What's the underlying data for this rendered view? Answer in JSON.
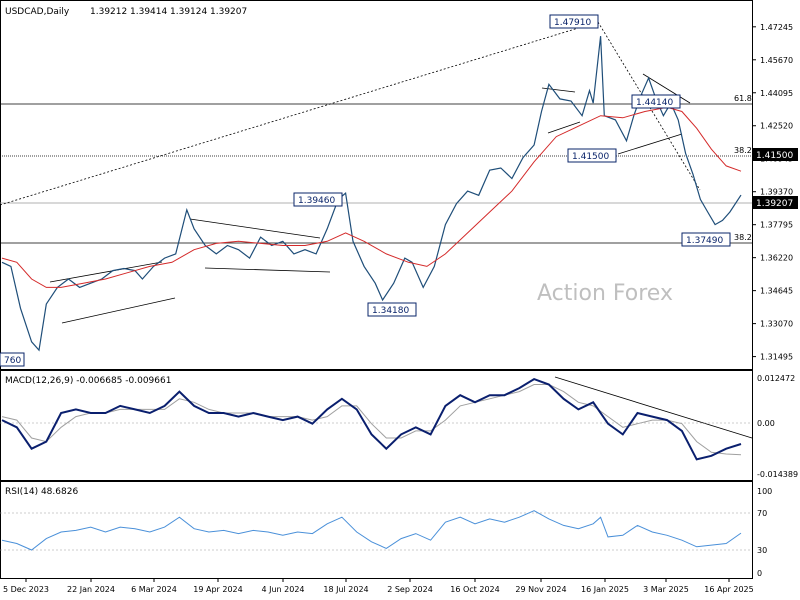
{
  "chart_data": {
    "type": "candlestick",
    "symbol_label": "USDCAD,Daily",
    "ohlc": [
      "1.39212",
      "1.39414",
      "1.39124",
      "1.39207"
    ],
    "watermark": "Action Forex",
    "x_ticks": [
      "5 Dec 2023",
      "22 Jan 2024",
      "6 Mar 2024",
      "19 Apr 2024",
      "4 Jun 2024",
      "18 Jul 2024",
      "2 Sep 2024",
      "16 Oct 2024",
      "29 Nov 2024",
      "16 Jan 2025",
      "3 Mar 2025",
      "16 Apr 2025"
    ],
    "price_panel": {
      "y_ticks": [
        "1.47245",
        "1.45670",
        "1.44095",
        "1.42520",
        "1.40945",
        "1.39370",
        "1.37795",
        "1.36220",
        "1.34645",
        "1.33070",
        "1.31495"
      ],
      "ylim": [
        1.3095,
        1.4843
      ],
      "current_price": "1.39207",
      "level_1_41500": "1.41500",
      "fib_levels": [
        {
          "label": "61.8",
          "value": 1.4386
        },
        {
          "label": "38.2",
          "value": 1.415
        },
        {
          "label": "38.2",
          "value": 1.3744
        }
      ],
      "callouts": [
        "1.47910",
        "1.44140",
        "1.41500",
        "1.39460",
        "1.37490",
        "1.34180",
        "760"
      ],
      "price_path": [
        [
          0,
          1.36
        ],
        [
          0.012,
          1.358
        ],
        [
          0.025,
          1.338
        ],
        [
          0.04,
          1.322
        ],
        [
          0.05,
          1.318
        ],
        [
          0.06,
          1.34
        ],
        [
          0.075,
          1.348
        ],
        [
          0.09,
          1.352
        ],
        [
          0.105,
          1.348
        ],
        [
          0.12,
          1.35
        ],
        [
          0.135,
          1.352
        ],
        [
          0.15,
          1.356
        ],
        [
          0.165,
          1.357
        ],
        [
          0.18,
          1.356
        ],
        [
          0.19,
          1.352
        ],
        [
          0.205,
          1.358
        ],
        [
          0.22,
          1.362
        ],
        [
          0.235,
          1.364
        ],
        [
          0.25,
          1.385
        ],
        [
          0.26,
          1.376
        ],
        [
          0.275,
          1.368
        ],
        [
          0.29,
          1.364
        ],
        [
          0.305,
          1.368
        ],
        [
          0.32,
          1.366
        ],
        [
          0.335,
          1.362
        ],
        [
          0.35,
          1.372
        ],
        [
          0.365,
          1.368
        ],
        [
          0.38,
          1.37
        ],
        [
          0.395,
          1.364
        ],
        [
          0.41,
          1.366
        ],
        [
          0.425,
          1.364
        ],
        [
          0.44,
          1.376
        ],
        [
          0.455,
          1.39
        ],
        [
          0.465,
          1.393
        ],
        [
          0.475,
          1.37
        ],
        [
          0.49,
          1.358
        ],
        [
          0.505,
          1.35
        ],
        [
          0.515,
          1.342
        ],
        [
          0.53,
          1.35
        ],
        [
          0.545,
          1.362
        ],
        [
          0.555,
          1.36
        ],
        [
          0.57,
          1.348
        ],
        [
          0.585,
          1.358
        ],
        [
          0.6,
          1.378
        ],
        [
          0.615,
          1.388
        ],
        [
          0.63,
          1.394
        ],
        [
          0.645,
          1.392
        ],
        [
          0.66,
          1.404
        ],
        [
          0.675,
          1.405
        ],
        [
          0.69,
          1.4
        ],
        [
          0.705,
          1.41
        ],
        [
          0.72,
          1.416
        ],
        [
          0.73,
          1.432
        ],
        [
          0.74,
          1.445
        ],
        [
          0.755,
          1.438
        ],
        [
          0.77,
          1.437
        ],
        [
          0.785,
          1.43
        ],
        [
          0.795,
          1.442
        ],
        [
          0.8,
          1.436
        ],
        [
          0.81,
          1.468
        ],
        [
          0.815,
          1.43
        ],
        [
          0.83,
          1.428
        ],
        [
          0.845,
          1.418
        ],
        [
          0.855,
          1.43
        ],
        [
          0.865,
          1.44
        ],
        [
          0.875,
          1.448
        ],
        [
          0.885,
          1.438
        ],
        [
          0.895,
          1.43
        ],
        [
          0.905,
          1.436
        ],
        [
          0.915,
          1.428
        ],
        [
          0.925,
          1.412
        ],
        [
          0.935,
          1.402
        ],
        [
          0.945,
          1.39
        ],
        [
          0.955,
          1.384
        ],
        [
          0.965,
          1.378
        ],
        [
          0.975,
          1.38
        ],
        [
          0.985,
          1.384
        ],
        [
          1.0,
          1.3921
        ]
      ],
      "ma_path": [
        [
          0,
          1.362
        ],
        [
          0.02,
          1.36
        ],
        [
          0.04,
          1.352
        ],
        [
          0.06,
          1.348
        ],
        [
          0.08,
          1.348
        ],
        [
          0.11,
          1.35
        ],
        [
          0.14,
          1.352
        ],
        [
          0.17,
          1.355
        ],
        [
          0.2,
          1.358
        ],
        [
          0.23,
          1.36
        ],
        [
          0.26,
          1.366
        ],
        [
          0.29,
          1.369
        ],
        [
          0.32,
          1.37
        ],
        [
          0.35,
          1.369
        ],
        [
          0.38,
          1.368
        ],
        [
          0.41,
          1.368
        ],
        [
          0.44,
          1.37
        ],
        [
          0.465,
          1.374
        ],
        [
          0.49,
          1.37
        ],
        [
          0.52,
          1.364
        ],
        [
          0.55,
          1.36
        ],
        [
          0.575,
          1.358
        ],
        [
          0.6,
          1.364
        ],
        [
          0.63,
          1.374
        ],
        [
          0.66,
          1.384
        ],
        [
          0.69,
          1.394
        ],
        [
          0.72,
          1.408
        ],
        [
          0.75,
          1.42
        ],
        [
          0.78,
          1.425
        ],
        [
          0.81,
          1.43
        ],
        [
          0.84,
          1.429
        ],
        [
          0.87,
          1.432
        ],
        [
          0.9,
          1.434
        ],
        [
          0.92,
          1.432
        ],
        [
          0.94,
          1.424
        ],
        [
          0.96,
          1.414
        ],
        [
          0.98,
          1.406
        ],
        [
          1.0,
          1.4035
        ]
      ]
    },
    "macd_panel": {
      "label": "MACD(12,26,9) -0.006685 -0.009661",
      "y_ticks": [
        "0.012472",
        "0.00",
        "-0.014389"
      ],
      "ylim": [
        -0.0165,
        0.0135
      ],
      "macd_line": [
        [
          0,
          0.0
        ],
        [
          0.02,
          -0.002
        ],
        [
          0.04,
          -0.008
        ],
        [
          0.06,
          -0.006
        ],
        [
          0.08,
          0.002
        ],
        [
          0.1,
          0.003
        ],
        [
          0.12,
          0.002
        ],
        [
          0.14,
          0.002
        ],
        [
          0.16,
          0.004
        ],
        [
          0.18,
          0.003
        ],
        [
          0.2,
          0.002
        ],
        [
          0.22,
          0.004
        ],
        [
          0.24,
          0.008
        ],
        [
          0.26,
          0.004
        ],
        [
          0.28,
          0.002
        ],
        [
          0.3,
          0.002
        ],
        [
          0.32,
          0.001
        ],
        [
          0.34,
          0.002
        ],
        [
          0.36,
          0.001
        ],
        [
          0.38,
          0.0
        ],
        [
          0.4,
          0.001
        ],
        [
          0.42,
          -0.001
        ],
        [
          0.44,
          0.003
        ],
        [
          0.46,
          0.006
        ],
        [
          0.48,
          0.003
        ],
        [
          0.5,
          -0.004
        ],
        [
          0.52,
          -0.008
        ],
        [
          0.54,
          -0.004
        ],
        [
          0.56,
          -0.002
        ],
        [
          0.58,
          -0.004
        ],
        [
          0.6,
          0.004
        ],
        [
          0.62,
          0.007
        ],
        [
          0.64,
          0.005
        ],
        [
          0.66,
          0.007
        ],
        [
          0.68,
          0.007
        ],
        [
          0.7,
          0.009
        ],
        [
          0.72,
          0.0115
        ],
        [
          0.74,
          0.01
        ],
        [
          0.76,
          0.006
        ],
        [
          0.78,
          0.003
        ],
        [
          0.8,
          0.005
        ],
        [
          0.82,
          -0.001
        ],
        [
          0.84,
          -0.004
        ],
        [
          0.86,
          0.002
        ],
        [
          0.88,
          0.001
        ],
        [
          0.9,
          0.0
        ],
        [
          0.92,
          -0.003
        ],
        [
          0.94,
          -0.011
        ],
        [
          0.96,
          -0.01
        ],
        [
          0.98,
          -0.008
        ],
        [
          1.0,
          -0.0067
        ]
      ],
      "signal_line": [
        [
          0,
          0.001
        ],
        [
          0.02,
          0.0
        ],
        [
          0.04,
          -0.005
        ],
        [
          0.06,
          -0.006
        ],
        [
          0.08,
          -0.002
        ],
        [
          0.1,
          0.001
        ],
        [
          0.12,
          0.002
        ],
        [
          0.14,
          0.002
        ],
        [
          0.16,
          0.003
        ],
        [
          0.18,
          0.003
        ],
        [
          0.2,
          0.003
        ],
        [
          0.22,
          0.003
        ],
        [
          0.24,
          0.006
        ],
        [
          0.26,
          0.005
        ],
        [
          0.28,
          0.003
        ],
        [
          0.3,
          0.002
        ],
        [
          0.32,
          0.002
        ],
        [
          0.34,
          0.002
        ],
        [
          0.36,
          0.001
        ],
        [
          0.38,
          0.001
        ],
        [
          0.4,
          0.001
        ],
        [
          0.42,
          0.0
        ],
        [
          0.44,
          0.001
        ],
        [
          0.46,
          0.004
        ],
        [
          0.48,
          0.004
        ],
        [
          0.5,
          -0.001
        ],
        [
          0.52,
          -0.005
        ],
        [
          0.54,
          -0.005
        ],
        [
          0.56,
          -0.003
        ],
        [
          0.58,
          -0.003
        ],
        [
          0.6,
          0.0
        ],
        [
          0.62,
          0.004
        ],
        [
          0.64,
          0.005
        ],
        [
          0.66,
          0.006
        ],
        [
          0.68,
          0.007
        ],
        [
          0.7,
          0.008
        ],
        [
          0.72,
          0.01
        ],
        [
          0.74,
          0.01
        ],
        [
          0.76,
          0.008
        ],
        [
          0.78,
          0.005
        ],
        [
          0.8,
          0.004
        ],
        [
          0.82,
          0.001
        ],
        [
          0.84,
          -0.002
        ],
        [
          0.86,
          -0.001
        ],
        [
          0.88,
          0.0
        ],
        [
          0.9,
          0.0
        ],
        [
          0.92,
          -0.001
        ],
        [
          0.94,
          -0.006
        ],
        [
          0.96,
          -0.009
        ],
        [
          0.98,
          -0.0095
        ],
        [
          1.0,
          -0.0097
        ]
      ]
    },
    "rsi_panel": {
      "label": "RSI(14) 48.6826",
      "y_ticks": [
        "100",
        "70",
        "30",
        "0"
      ],
      "ylim": [
        0,
        100
      ],
      "rsi_path": [
        [
          0,
          40
        ],
        [
          0.02,
          36
        ],
        [
          0.04,
          28
        ],
        [
          0.06,
          42
        ],
        [
          0.08,
          50
        ],
        [
          0.1,
          52
        ],
        [
          0.12,
          56
        ],
        [
          0.14,
          50
        ],
        [
          0.16,
          56
        ],
        [
          0.18,
          54
        ],
        [
          0.2,
          50
        ],
        [
          0.22,
          56
        ],
        [
          0.24,
          68
        ],
        [
          0.26,
          54
        ],
        [
          0.28,
          50
        ],
        [
          0.3,
          52
        ],
        [
          0.32,
          48
        ],
        [
          0.34,
          52
        ],
        [
          0.36,
          50
        ],
        [
          0.38,
          46
        ],
        [
          0.4,
          50
        ],
        [
          0.42,
          48
        ],
        [
          0.44,
          60
        ],
        [
          0.46,
          68
        ],
        [
          0.48,
          50
        ],
        [
          0.5,
          38
        ],
        [
          0.52,
          30
        ],
        [
          0.54,
          42
        ],
        [
          0.56,
          48
        ],
        [
          0.58,
          40
        ],
        [
          0.6,
          62
        ],
        [
          0.62,
          68
        ],
        [
          0.64,
          60
        ],
        [
          0.66,
          66
        ],
        [
          0.68,
          62
        ],
        [
          0.7,
          68
        ],
        [
          0.72,
          76
        ],
        [
          0.74,
          66
        ],
        [
          0.76,
          58
        ],
        [
          0.78,
          54
        ],
        [
          0.8,
          60
        ],
        [
          0.81,
          68
        ],
        [
          0.82,
          44
        ],
        [
          0.84,
          46
        ],
        [
          0.86,
          58
        ],
        [
          0.88,
          50
        ],
        [
          0.9,
          46
        ],
        [
          0.92,
          40
        ],
        [
          0.94,
          32
        ],
        [
          0.96,
          34
        ],
        [
          0.98,
          36
        ],
        [
          1.0,
          48.7
        ]
      ]
    }
  }
}
